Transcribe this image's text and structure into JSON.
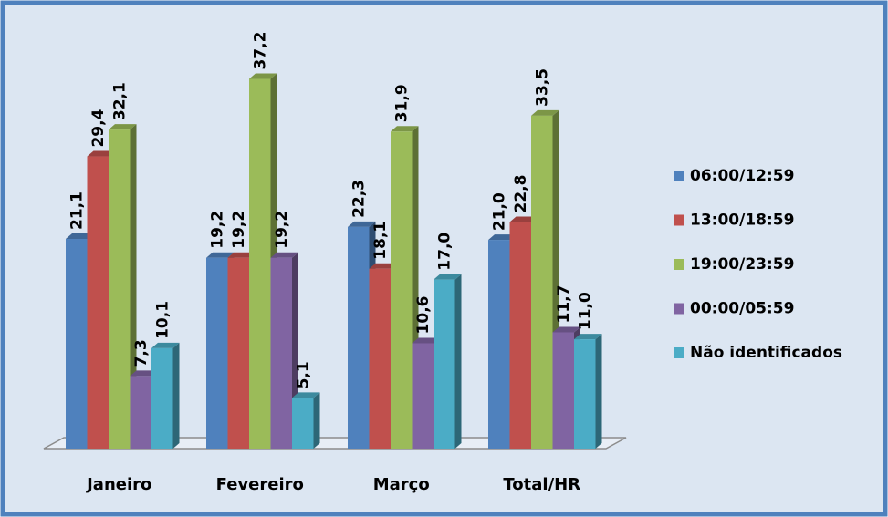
{
  "chart_data": {
    "type": "bar3d",
    "categories": [
      "Janeiro",
      "Fevereiro",
      "Março",
      "Total/HR"
    ],
    "series": [
      {
        "name": "06:00/12:59",
        "color": "#4f81bd",
        "values": [
          21.1,
          19.2,
          22.3,
          21.0
        ],
        "value_labels": [
          "21,1",
          "19,2",
          "22,3",
          "21,0"
        ]
      },
      {
        "name": "13:00/18:59",
        "color": "#c0504d",
        "values": [
          29.4,
          19.2,
          18.1,
          22.8
        ],
        "value_labels": [
          "29,4",
          "19,2",
          "18,1",
          "22,8"
        ]
      },
      {
        "name": "19:00/23:59",
        "color": "#9bbb59",
        "values": [
          32.1,
          37.2,
          31.9,
          33.5
        ],
        "value_labels": [
          "32,1",
          "37,2",
          "31,9",
          "33,5"
        ]
      },
      {
        "name": "00:00/05:59",
        "color": "#8064a2",
        "values": [
          7.3,
          19.2,
          10.6,
          11.7
        ],
        "value_labels": [
          "7,3",
          "19,2",
          "10,6",
          "11,7"
        ]
      },
      {
        "name": "Não identificados",
        "color": "#4bacc6",
        "values": [
          10.1,
          5.1,
          17.0,
          11.0
        ],
        "value_labels": [
          "10,1",
          "5,1",
          "17,0",
          "11,0"
        ]
      }
    ],
    "legend": "right"
  }
}
